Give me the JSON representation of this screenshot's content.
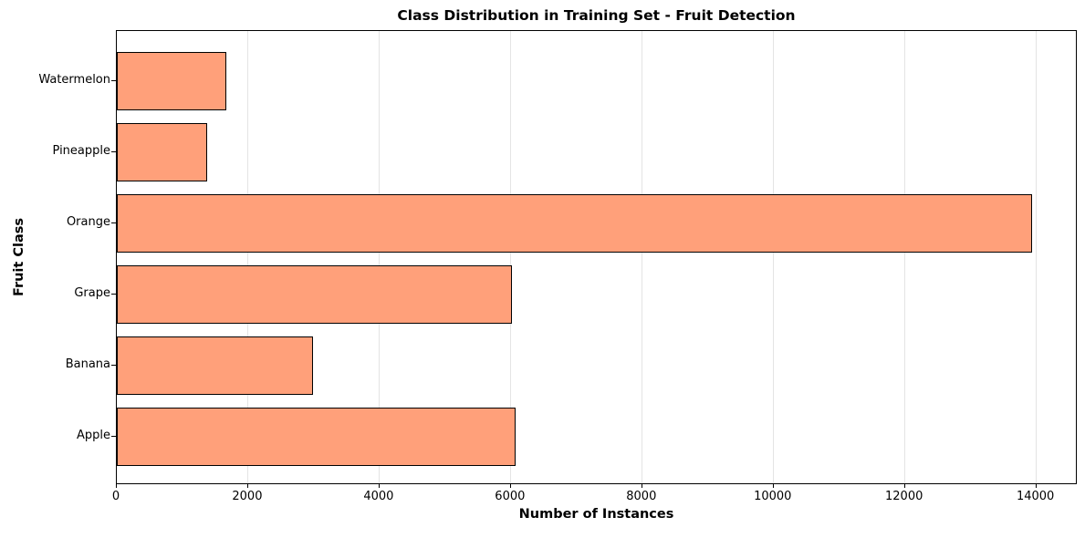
{
  "chart_data": {
    "type": "bar",
    "orientation": "horizontal",
    "title": "Class Distribution in Training Set - Fruit Detection",
    "xlabel": "Number of Instances",
    "ylabel": "Fruit Class",
    "categories_order": "top-to-bottom",
    "categories": [
      "Watermelon",
      "Pineapple",
      "Orange",
      "Grape",
      "Banana",
      "Apple"
    ],
    "values": [
      1670,
      1370,
      13930,
      6020,
      2990,
      6070
    ],
    "xticks": [
      0,
      2000,
      4000,
      6000,
      8000,
      10000,
      12000,
      14000
    ],
    "xlim": [
      0,
      14630
    ],
    "grid": true,
    "grid_axis": "x",
    "legend": null,
    "bar_color": "#FFA07A",
    "bar_edge_color": "#000000",
    "grid_color": "#e4e4e4",
    "background_color": "#ffffff"
  }
}
